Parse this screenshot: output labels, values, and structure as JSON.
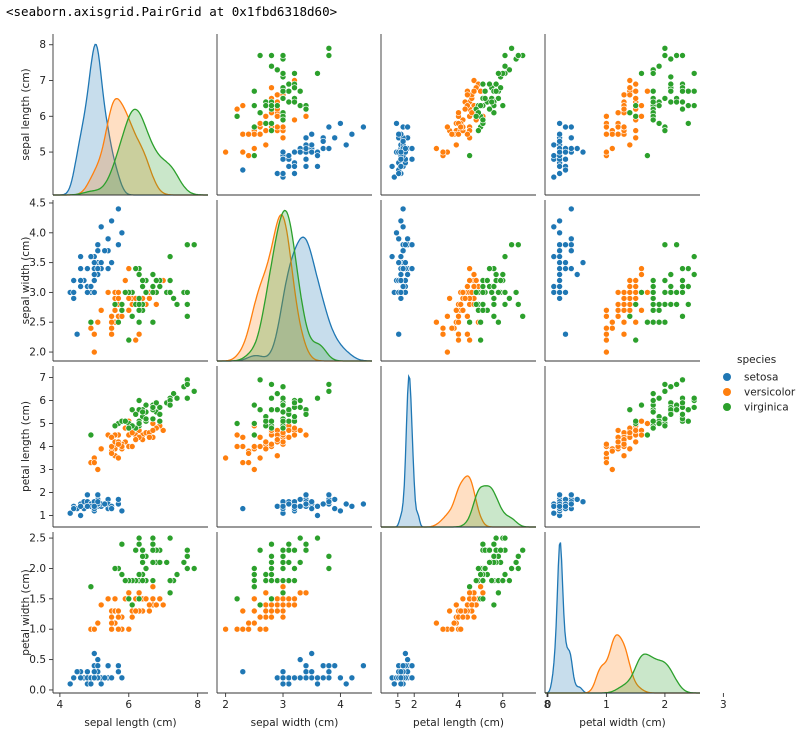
{
  "output_text": "<seaborn.axisgrid.PairGrid at 0x1fbd6318d60>",
  "colors": {
    "setosa": "#1f77b4",
    "versicolor": "#ff7f0e",
    "virginica": "#2ca02c"
  },
  "chart_data": {
    "type": "scatter",
    "variables": [
      "sepal length (cm)",
      "sepal width (cm)",
      "petal length (cm)",
      "petal width (cm)"
    ],
    "axis_ranges": [
      [
        3.8,
        8.3
      ],
      [
        1.85,
        4.55
      ],
      [
        0.5,
        7.5
      ],
      [
        -0.05,
        2.6
      ]
    ],
    "ticks": [
      [
        4,
        6,
        8
      ],
      [
        2,
        3,
        4,
        5
      ],
      [
        2,
        4,
        6,
        8
      ],
      [
        0,
        1,
        2,
        3
      ]
    ],
    "y_ticks": [
      [
        5,
        6,
        7,
        8
      ],
      [
        2.0,
        2.5,
        3.0,
        3.5,
        4.0,
        4.5
      ],
      [
        1,
        2,
        3,
        4,
        5,
        6,
        7
      ],
      [
        0.0,
        0.5,
        1.0,
        1.5,
        2.0,
        2.5
      ]
    ],
    "diag_x_ranges": [
      [
        3.5,
        9.0
      ],
      [
        1.4,
        5.0
      ],
      [
        0,
        8
      ],
      [
        -0.1,
        3.0
      ]
    ],
    "legend": {
      "title": "species",
      "placement": "right",
      "entries": [
        "setosa",
        "versicolor",
        "virginica"
      ]
    },
    "series": [
      {
        "name": "setosa",
        "points": [
          [
            5.1,
            3.5,
            1.4,
            0.2
          ],
          [
            4.9,
            3.0,
            1.4,
            0.2
          ],
          [
            4.7,
            3.2,
            1.3,
            0.2
          ],
          [
            4.6,
            3.1,
            1.5,
            0.2
          ],
          [
            5.0,
            3.6,
            1.4,
            0.2
          ],
          [
            5.4,
            3.9,
            1.7,
            0.4
          ],
          [
            4.6,
            3.4,
            1.4,
            0.3
          ],
          [
            5.0,
            3.4,
            1.5,
            0.2
          ],
          [
            4.4,
            2.9,
            1.4,
            0.2
          ],
          [
            4.9,
            3.1,
            1.5,
            0.1
          ],
          [
            5.4,
            3.7,
            1.5,
            0.2
          ],
          [
            4.8,
            3.4,
            1.6,
            0.2
          ],
          [
            4.8,
            3.0,
            1.4,
            0.1
          ],
          [
            4.3,
            3.0,
            1.1,
            0.1
          ],
          [
            5.8,
            4.0,
            1.2,
            0.2
          ],
          [
            5.7,
            4.4,
            1.5,
            0.4
          ],
          [
            5.4,
            3.9,
            1.3,
            0.4
          ],
          [
            5.1,
            3.5,
            1.4,
            0.3
          ],
          [
            5.7,
            3.8,
            1.7,
            0.3
          ],
          [
            5.1,
            3.8,
            1.5,
            0.3
          ],
          [
            5.4,
            3.4,
            1.7,
            0.2
          ],
          [
            5.1,
            3.7,
            1.5,
            0.4
          ],
          [
            4.6,
            3.6,
            1.0,
            0.2
          ],
          [
            5.1,
            3.3,
            1.7,
            0.5
          ],
          [
            4.8,
            3.4,
            1.9,
            0.2
          ],
          [
            5.0,
            3.0,
            1.6,
            0.2
          ],
          [
            5.0,
            3.4,
            1.6,
            0.4
          ],
          [
            5.2,
            3.5,
            1.5,
            0.2
          ],
          [
            5.2,
            3.4,
            1.4,
            0.2
          ],
          [
            4.7,
            3.2,
            1.6,
            0.2
          ],
          [
            4.8,
            3.1,
            1.6,
            0.2
          ],
          [
            5.4,
            3.4,
            1.5,
            0.4
          ],
          [
            5.2,
            4.1,
            1.5,
            0.1
          ],
          [
            5.5,
            4.2,
            1.4,
            0.2
          ],
          [
            4.9,
            3.1,
            1.5,
            0.2
          ],
          [
            5.0,
            3.2,
            1.2,
            0.2
          ],
          [
            5.5,
            3.5,
            1.3,
            0.2
          ],
          [
            4.9,
            3.6,
            1.4,
            0.1
          ],
          [
            4.4,
            3.0,
            1.3,
            0.2
          ],
          [
            5.1,
            3.4,
            1.5,
            0.2
          ],
          [
            5.0,
            3.5,
            1.3,
            0.3
          ],
          [
            4.5,
            2.3,
            1.3,
            0.3
          ],
          [
            4.4,
            3.2,
            1.3,
            0.2
          ],
          [
            5.0,
            3.5,
            1.6,
            0.6
          ],
          [
            5.1,
            3.8,
            1.9,
            0.4
          ],
          [
            4.8,
            3.0,
            1.4,
            0.3
          ],
          [
            5.1,
            3.8,
            1.6,
            0.2
          ],
          [
            4.6,
            3.2,
            1.4,
            0.2
          ],
          [
            5.3,
            3.7,
            1.5,
            0.2
          ],
          [
            5.0,
            3.3,
            1.4,
            0.2
          ]
        ]
      },
      {
        "name": "versicolor",
        "points": [
          [
            7.0,
            3.2,
            4.7,
            1.4
          ],
          [
            6.4,
            3.2,
            4.5,
            1.5
          ],
          [
            6.9,
            3.1,
            4.9,
            1.5
          ],
          [
            5.5,
            2.3,
            4.0,
            1.3
          ],
          [
            6.5,
            2.8,
            4.6,
            1.5
          ],
          [
            5.7,
            2.8,
            4.5,
            1.3
          ],
          [
            6.3,
            3.3,
            4.7,
            1.6
          ],
          [
            4.9,
            2.4,
            3.3,
            1.0
          ],
          [
            6.6,
            2.9,
            4.6,
            1.3
          ],
          [
            5.2,
            2.7,
            3.9,
            1.4
          ],
          [
            5.0,
            2.0,
            3.5,
            1.0
          ],
          [
            5.9,
            3.0,
            4.2,
            1.5
          ],
          [
            6.0,
            2.2,
            4.0,
            1.0
          ],
          [
            6.1,
            2.9,
            4.7,
            1.4
          ],
          [
            5.6,
            2.9,
            3.6,
            1.3
          ],
          [
            6.7,
            3.1,
            4.4,
            1.4
          ],
          [
            5.6,
            3.0,
            4.5,
            1.5
          ],
          [
            5.8,
            2.7,
            4.1,
            1.0
          ],
          [
            6.2,
            2.2,
            4.5,
            1.5
          ],
          [
            5.6,
            2.5,
            3.9,
            1.1
          ],
          [
            5.9,
            3.2,
            4.8,
            1.8
          ],
          [
            6.1,
            2.8,
            4.0,
            1.3
          ],
          [
            6.3,
            2.5,
            4.9,
            1.5
          ],
          [
            6.1,
            2.8,
            4.7,
            1.2
          ],
          [
            6.4,
            2.9,
            4.3,
            1.3
          ],
          [
            6.6,
            3.0,
            4.4,
            1.4
          ],
          [
            6.8,
            2.8,
            4.8,
            1.4
          ],
          [
            6.7,
            3.0,
            5.0,
            1.7
          ],
          [
            6.0,
            2.9,
            4.5,
            1.5
          ],
          [
            5.7,
            2.6,
            3.5,
            1.0
          ],
          [
            5.5,
            2.4,
            3.8,
            1.1
          ],
          [
            5.5,
            2.4,
            3.7,
            1.0
          ],
          [
            5.8,
            2.7,
            3.9,
            1.2
          ],
          [
            6.0,
            2.7,
            5.1,
            1.6
          ],
          [
            5.4,
            3.0,
            4.5,
            1.5
          ],
          [
            6.0,
            3.4,
            4.5,
            1.6
          ],
          [
            6.7,
            3.1,
            4.7,
            1.5
          ],
          [
            6.3,
            2.3,
            4.4,
            1.3
          ],
          [
            5.6,
            3.0,
            4.1,
            1.3
          ],
          [
            5.5,
            2.5,
            4.0,
            1.3
          ],
          [
            5.5,
            2.6,
            4.4,
            1.2
          ],
          [
            6.1,
            3.0,
            4.6,
            1.4
          ],
          [
            5.8,
            2.6,
            4.0,
            1.2
          ],
          [
            5.0,
            2.3,
            3.3,
            1.0
          ],
          [
            5.6,
            2.7,
            4.2,
            1.3
          ],
          [
            5.7,
            3.0,
            4.2,
            1.2
          ],
          [
            5.7,
            2.9,
            4.2,
            1.3
          ],
          [
            6.2,
            2.9,
            4.3,
            1.3
          ],
          [
            5.1,
            2.5,
            3.0,
            1.1
          ],
          [
            5.7,
            2.8,
            4.1,
            1.3
          ]
        ]
      },
      {
        "name": "virginica",
        "points": [
          [
            6.3,
            3.3,
            6.0,
            2.5
          ],
          [
            5.8,
            2.7,
            5.1,
            1.9
          ],
          [
            7.1,
            3.0,
            5.9,
            2.1
          ],
          [
            6.3,
            2.9,
            5.6,
            1.8
          ],
          [
            6.5,
            3.0,
            5.8,
            2.2
          ],
          [
            7.6,
            3.0,
            6.6,
            2.1
          ],
          [
            4.9,
            2.5,
            4.5,
            1.7
          ],
          [
            7.3,
            2.9,
            6.3,
            1.8
          ],
          [
            6.7,
            2.5,
            5.8,
            1.8
          ],
          [
            7.2,
            3.6,
            6.1,
            2.5
          ],
          [
            6.5,
            3.2,
            5.1,
            2.0
          ],
          [
            6.4,
            2.7,
            5.3,
            1.9
          ],
          [
            6.8,
            3.0,
            5.5,
            2.1
          ],
          [
            5.7,
            2.5,
            5.0,
            2.0
          ],
          [
            5.8,
            2.8,
            5.1,
            2.4
          ],
          [
            6.4,
            3.2,
            5.3,
            2.3
          ],
          [
            6.5,
            3.0,
            5.5,
            1.8
          ],
          [
            7.7,
            3.8,
            6.7,
            2.2
          ],
          [
            7.7,
            2.6,
            6.9,
            2.3
          ],
          [
            6.0,
            2.2,
            5.0,
            1.5
          ],
          [
            6.9,
            3.2,
            5.7,
            2.3
          ],
          [
            5.6,
            2.8,
            4.9,
            2.0
          ],
          [
            7.7,
            2.8,
            6.7,
            2.0
          ],
          [
            6.3,
            2.7,
            4.9,
            1.8
          ],
          [
            6.7,
            3.3,
            5.7,
            2.1
          ],
          [
            7.2,
            3.2,
            6.0,
            1.8
          ],
          [
            6.2,
            2.8,
            4.8,
            1.8
          ],
          [
            6.1,
            3.0,
            4.9,
            1.8
          ],
          [
            6.4,
            2.8,
            5.6,
            2.1
          ],
          [
            7.2,
            3.0,
            5.8,
            1.6
          ],
          [
            7.4,
            2.8,
            6.1,
            1.9
          ],
          [
            7.9,
            3.8,
            6.4,
            2.0
          ],
          [
            6.4,
            2.8,
            5.6,
            2.2
          ],
          [
            6.3,
            2.8,
            5.1,
            1.5
          ],
          [
            6.1,
            2.6,
            5.6,
            1.4
          ],
          [
            7.7,
            3.0,
            6.1,
            2.3
          ],
          [
            6.3,
            3.4,
            5.6,
            2.4
          ],
          [
            6.4,
            3.1,
            5.5,
            1.8
          ],
          [
            6.0,
            3.0,
            4.8,
            1.8
          ],
          [
            6.9,
            3.1,
            5.4,
            2.1
          ],
          [
            6.7,
            3.1,
            5.6,
            2.4
          ],
          [
            6.9,
            3.1,
            5.1,
            2.3
          ],
          [
            5.8,
            2.7,
            5.1,
            1.9
          ],
          [
            6.8,
            3.2,
            5.9,
            2.3
          ],
          [
            6.7,
            3.3,
            5.7,
            2.5
          ],
          [
            6.7,
            3.0,
            5.2,
            2.3
          ],
          [
            6.3,
            2.5,
            5.0,
            1.9
          ],
          [
            6.5,
            3.0,
            5.2,
            2.0
          ],
          [
            6.2,
            3.4,
            5.4,
            2.3
          ],
          [
            5.9,
            3.0,
            5.1,
            1.8
          ]
        ]
      }
    ]
  }
}
